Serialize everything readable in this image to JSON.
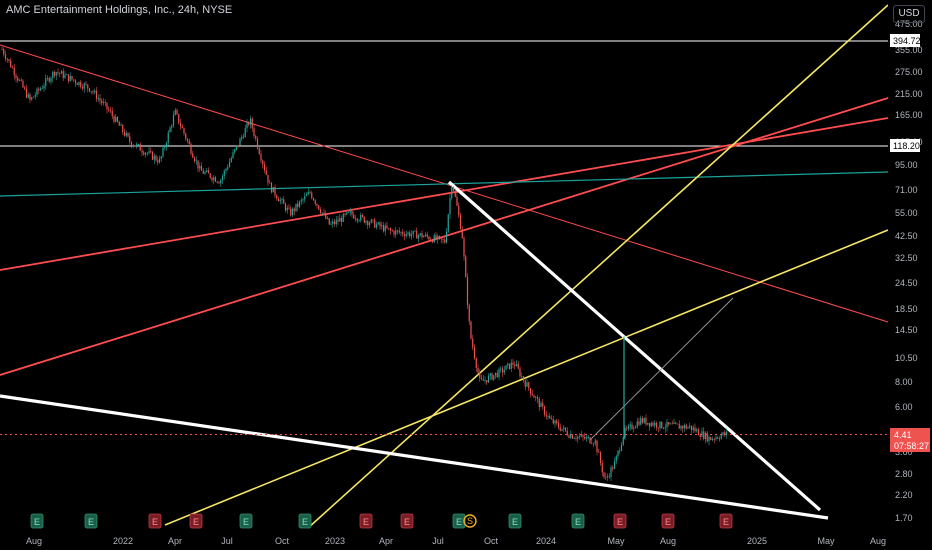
{
  "header": {
    "title": "AMC Entertainment Holdings, Inc., 24h, NYSE",
    "currency": "USD"
  },
  "colors": {
    "background": "#000000",
    "candle_up": "#26a69a",
    "candle_down": "#ef5350",
    "red_line": "#ff4d4f",
    "yellow_line": "#f5e663",
    "white_line": "#ffffff",
    "teal_line": "#1ba39c",
    "earnings_icon": "#1b5e4a",
    "earnings_icon_red": "#7a1e26",
    "dividend_icon": "#f2b01e"
  },
  "chart_data": {
    "type": "candlestick",
    "title": "AMC Entertainment Holdings, Inc., 24h, NYSE",
    "y_scale": "log",
    "x_ticks": [
      "Aug",
      "2022",
      "Apr",
      "Jul",
      "Oct",
      "2023",
      "Apr",
      "Jul",
      "Oct",
      "2024",
      "May",
      "Aug",
      "2025",
      "May",
      "Aug"
    ],
    "y_ticks": [
      "475.00",
      "355.00",
      "275.00",
      "215.00",
      "165.00",
      "125.00",
      "95.00",
      "71.00",
      "55.00",
      "42.50",
      "32.50",
      "24.50",
      "18.50",
      "14.50",
      "10.50",
      "8.00",
      "6.00",
      "4.41",
      "3.60",
      "2.80",
      "2.20",
      "1.70"
    ],
    "price_labels": [
      {
        "value": "394.72",
        "kind": "horizontal-line"
      },
      {
        "value": "118.20",
        "kind": "horizontal-line"
      },
      {
        "value": "4.41",
        "kind": "last-price"
      },
      {
        "value": "07:58:27",
        "kind": "countdown"
      }
    ],
    "horizontal_levels": [
      394.72,
      118.2
    ],
    "last_price": 4.41,
    "event_markers": [
      "E",
      "E",
      "E",
      "E",
      "E",
      "E",
      "E",
      "E",
      "E",
      "E",
      "S",
      "E",
      "E",
      "E",
      "E",
      "E"
    ]
  }
}
